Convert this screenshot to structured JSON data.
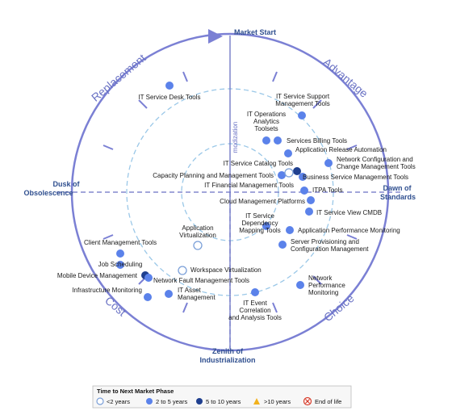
{
  "axes": {
    "top": "Market Start",
    "left_line1": "Dusk of",
    "left_line2": "Obsolescence",
    "right_line1": "Dawn of",
    "right_line2": "Standards",
    "bottom_line1": "Zenith of",
    "bottom_line2": "Industrialization"
  },
  "quadrants": {
    "top_left": "Replacement",
    "top_right": "Advantage",
    "bottom_left": "Cost",
    "bottom_right": "Choice"
  },
  "inner_label": "modization",
  "colors": {
    "ring": "#7b80d4",
    "dashed": "#9bc8e8",
    "axis": "#6a72c4",
    "dot_2to5": "#5b82ea",
    "dot_5to10": "#1f3f8f",
    "open_dot": "#7a9fd8"
  },
  "technologies": [
    {
      "label": "IT Service Desk Tools",
      "phase": "2 to 5 years"
    },
    {
      "label": "IT Service Support Management Tools",
      "phase": "2 to 5 years"
    },
    {
      "label": "IT Operations Analytics Toolsets",
      "phase": "2 to 5 years"
    },
    {
      "label": "Services Billing Tools",
      "phase": "2 to 5 years"
    },
    {
      "label": "Application Release Automation",
      "phase": "2 to 5 years"
    },
    {
      "label": "Network Configuration and Change Management Tools",
      "phase": "2 to 5 years"
    },
    {
      "label": "IT Service Catalog Tools",
      "phase": "5 to 10 years"
    },
    {
      "label": "Business Service Management Tools",
      "phase": "2 to 5 years"
    },
    {
      "label": "Capacity Planning and Management Tools",
      "phase": "2 to 5 years"
    },
    {
      "label": "IT Financial Management Tools",
      "phase": "<2 years"
    },
    {
      "label": "ITPA Tools",
      "phase": "2 to 5 years"
    },
    {
      "label": "Cloud Management Platforms",
      "phase": "2 to 5 years"
    },
    {
      "label": "IT Service View CMDB",
      "phase": "2 to 5 years"
    },
    {
      "label": "IT Service Dependency Mapping Tools",
      "phase": "2 to 5 years"
    },
    {
      "label": "Application Performance Monitoring",
      "phase": "2 to 5 years"
    },
    {
      "label": "Server Provisioning and Configuration Management",
      "phase": "2 to 5 years"
    },
    {
      "label": "Application Virtualization",
      "phase": "<2 years"
    },
    {
      "label": "Client Management Tools",
      "phase": "2 to 5 years"
    },
    {
      "label": "Job Scheduling",
      "phase": "2 to 5 years"
    },
    {
      "label": "Mobile Device Management",
      "phase": "5 to 10 years"
    },
    {
      "label": "Workspace Virtualization",
      "phase": "<2 years"
    },
    {
      "label": "Network Fault Management Tools",
      "phase": "2 to 5 years"
    },
    {
      "label": "Infrastructure Monitoring",
      "phase": "2 to 5 years"
    },
    {
      "label": "IT Asset Management",
      "phase": "2 to 5 years"
    },
    {
      "label": "IT Event Correlation and Analysis Tools",
      "phase": "2 to 5 years"
    },
    {
      "label": "Network Performance Monitoring",
      "phase": "2 to 5 years"
    }
  ],
  "legend": {
    "title": "Time to Next Market Phase",
    "items": [
      "<2 years",
      "2 to 5 years",
      "5 to 10 years",
      ">10 years",
      "End of life"
    ]
  }
}
